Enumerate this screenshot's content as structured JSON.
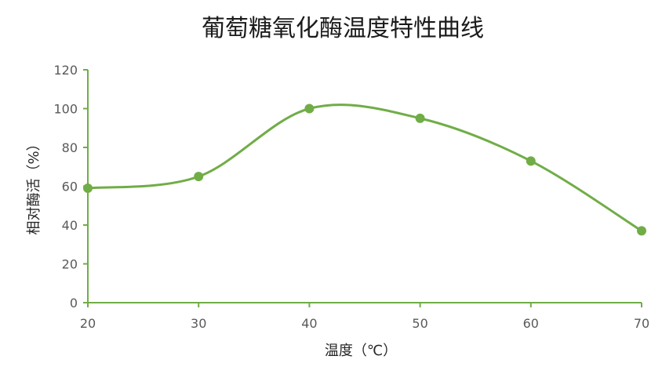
{
  "chart_data": {
    "type": "line",
    "title": "葡萄糖氧化酶温度特性曲线",
    "xlabel": "温度（℃）",
    "ylabel": "相对酶活（%）",
    "x": [
      20,
      30,
      40,
      50,
      60,
      70
    ],
    "series": [
      {
        "name": "",
        "values": [
          59,
          65,
          100,
          95,
          73,
          37
        ]
      }
    ],
    "xlim": [
      20,
      70
    ],
    "ylim": [
      0,
      120
    ],
    "yticks": [
      0,
      20,
      40,
      60,
      80,
      100,
      120
    ],
    "xticks": [
      20,
      30,
      40,
      50,
      60,
      70
    ],
    "smooth": true,
    "markers": true,
    "grid": false,
    "legend": "none",
    "colors": {
      "series": "#70ad47",
      "axis": "#70ad47"
    }
  }
}
